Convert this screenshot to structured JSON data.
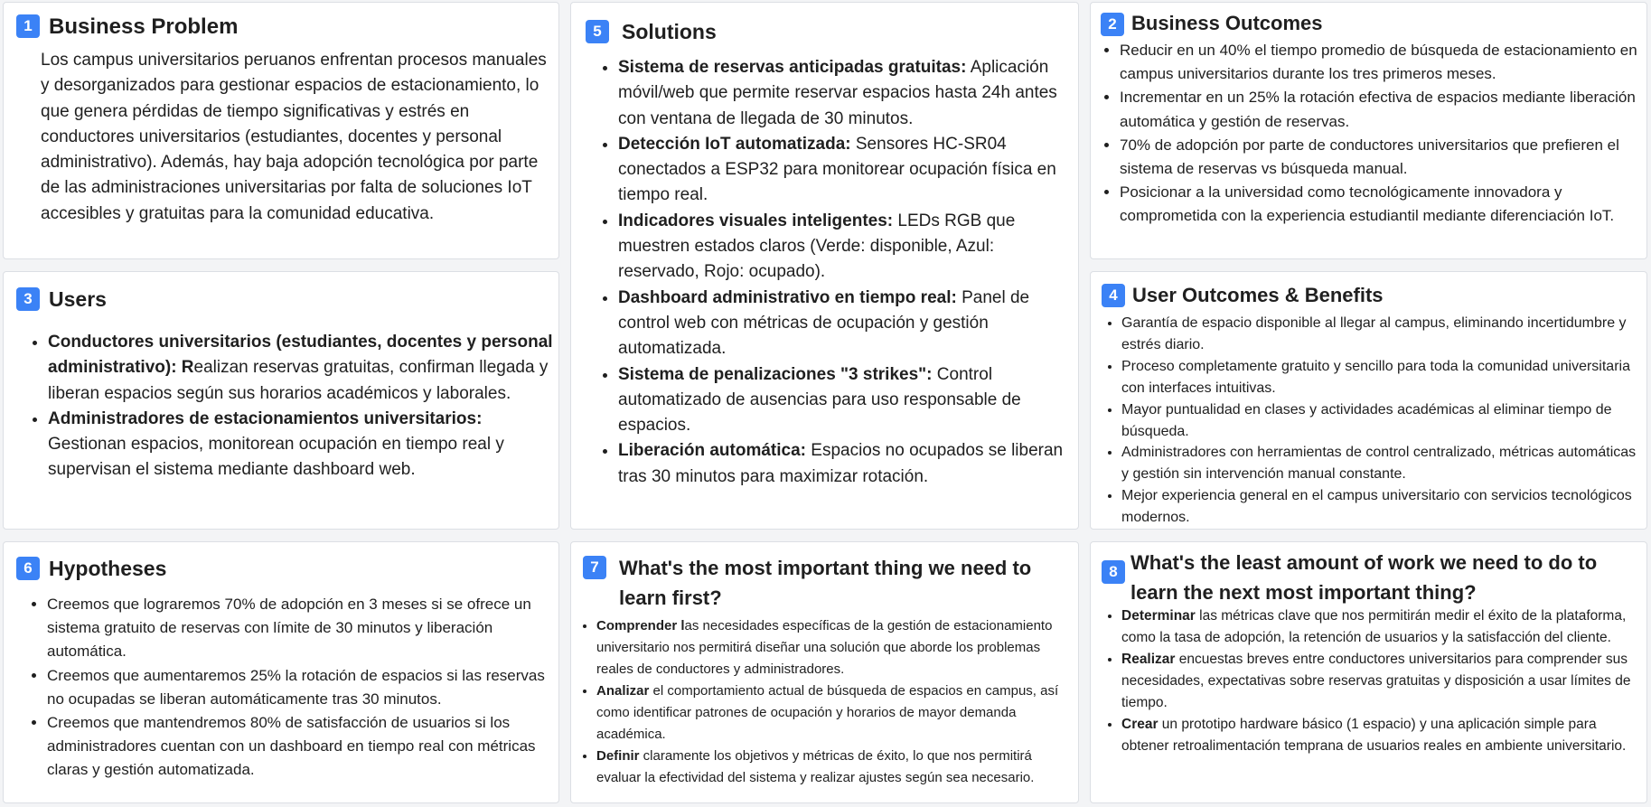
{
  "cards": {
    "business_problem": {
      "number": "1",
      "title": "Business Problem",
      "text": "Los campus universitarios peruanos enfrentan procesos manuales y desorganizados para gestionar espacios de estacionamiento, lo que genera pérdidas de tiempo significativas y estrés en conductores universitarios (estudiantes, docentes y personal administrativo). Además, hay baja adopción tecnológica por parte de las administraciones universitarias por falta de soluciones IoT accesibles y gratuitas para la comunidad educativa."
    },
    "solutions": {
      "number": "5",
      "title": "Solutions",
      "items": [
        {
          "bold": "Sistema de reservas anticipadas gratuitas:",
          "text": " Aplicación móvil/web que permite reservar espacios hasta 24h antes con ventana de llegada de 30 minutos."
        },
        {
          "bold": "Detección IoT automatizada:",
          "text": " Sensores HC-SR04 conectados a ESP32 para monitorear ocupación física en tiempo real."
        },
        {
          "bold": "Indicadores visuales inteligentes:",
          "text": " LEDs RGB que muestren estados claros (Verde: disponible, Azul: reservado, Rojo: ocupado)."
        },
        {
          "bold": "Dashboard administrativo en tiempo real:",
          "text": " Panel de control web con métricas de ocupación y gestión automatizada."
        },
        {
          "bold": "Sistema de penalizaciones \"3 strikes\":",
          "text": " Control automatizado de ausencias para uso responsable de espacios."
        },
        {
          "bold": "Liberación automática:",
          "text": " Espacios no ocupados se liberan tras 30 minutos para maximizar rotación."
        }
      ]
    },
    "business_outcomes": {
      "number": "2",
      "title": "Business Outcomes",
      "items": [
        "Reducir en un 40% el tiempo promedio de búsqueda de estacionamiento en campus universitarios durante los tres primeros meses.",
        "Incrementar en un 25% la rotación efectiva de espacios mediante liberación automática y gestión de reservas.",
        "70% de adopción por parte de conductores universitarios que prefieren el sistema de reservas vs búsqueda manual.",
        "Posicionar a la universidad como tecnológicamente innovadora y comprometida con la experiencia estudiantil mediante diferenciación IoT."
      ]
    },
    "users": {
      "number": "3",
      "title": "Users",
      "items": [
        {
          "bold": "Conductores universitarios (estudiantes, docentes y personal administrativo): R",
          "text": "ealizan reservas gratuitas, confirman llegada y liberan espacios según sus horarios académicos y laborales."
        },
        {
          "bold": "Administradores de estacionamientos universitarios:",
          "text": " Gestionan espacios, monitorean ocupación en tiempo real y supervisan el sistema mediante dashboard web."
        }
      ]
    },
    "user_outcomes": {
      "number": "4",
      "title": "User Outcomes & Benefits",
      "items": [
        "Garantía de espacio disponible al llegar al campus, eliminando incertidumbre y estrés diario.",
        "Proceso completamente gratuito y sencillo para toda la comunidad universitaria con interfaces intuitivas.",
        "Mayor puntualidad en clases y actividades académicas al eliminar tiempo de búsqueda.",
        "Administradores con herramientas de control centralizado, métricas automáticas y gestión sin intervención manual constante.",
        "Mejor experiencia general en el campus universitario con servicios tecnológicos modernos."
      ]
    },
    "hypotheses": {
      "number": "6",
      "title": "Hypotheses",
      "items": [
        "Creemos que lograremos 70% de adopción en 3 meses si se ofrece un sistema gratuito de reservas con límite de 30 minutos y liberación automática.",
        "Creemos que aumentaremos 25% la rotación de espacios si las reservas no ocupadas se liberan automáticamente tras 30 minutos.",
        "Creemos que mantendremos 80% de satisfacción de usuarios si los administradores cuentan con un dashboard en tiempo real con métricas claras y gestión automatizada."
      ]
    },
    "learn_first": {
      "number": "7",
      "title": "What's the most important thing we need to learn first?",
      "items": [
        {
          "bold": "Comprender l",
          "text": "as necesidades específicas de la gestión de estacionamiento universitario nos permitirá diseñar una solución que aborde los problemas reales de conductores y administradores."
        },
        {
          "bold": "Analizar",
          "text": " el comportamiento actual de búsqueda de espacios en campus, así como identificar patrones de ocupación y horarios de mayor demanda académica."
        },
        {
          "bold": "Definir",
          "text": " claramente los objetivos y métricas de éxito, lo que nos permitirá evaluar la efectividad del sistema y realizar ajustes según sea necesario."
        }
      ]
    },
    "least_work": {
      "number": "8",
      "title": "What's the least amount of work we need  to do to learn the next most important thing?",
      "items": [
        {
          "bold": "Determinar",
          "text": " las métricas clave que nos permitirán medir el éxito de la plataforma, como la tasa de adopción, la retención de usuarios y la satisfacción del cliente."
        },
        {
          "bold": "Realizar",
          "text": " encuestas breves entre conductores universitarios para comprender sus necesidades, expectativas sobre reservas gratuitas y disposición a usar límites de tiempo."
        },
        {
          "bold": "Crear",
          "text": " un prototipo hardware básico (1 espacio) y una aplicación simple para obtener retroalimentación temprana de usuarios reales en ambiente universitario."
        }
      ]
    }
  },
  "colors": {
    "badge": "#3b82f6",
    "card_border": "#dcdfe4",
    "background": "#f3f4f6"
  }
}
